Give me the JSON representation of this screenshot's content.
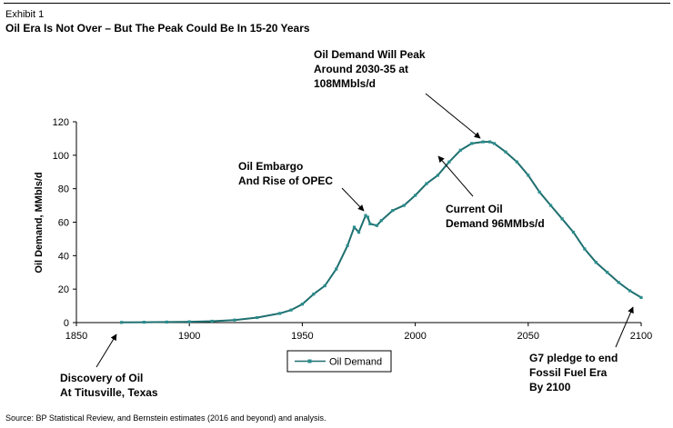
{
  "header": {
    "exhibit": "Exhibit 1",
    "title": "Oil Era Is Not Over – But The Peak Could Be In 15-20 Years"
  },
  "source": "Source: BP Statistical Review, and Bernstein estimates (2016 and beyond) and analysis.",
  "colors": {
    "series": "#1f6f6f",
    "marker": "#2a8c8c"
  },
  "chart_data": {
    "type": "line",
    "ylabel": "Oil Demand, MMbls/d",
    "xlabel": "",
    "xlim": [
      1850,
      2100
    ],
    "ylim": [
      0,
      120
    ],
    "xticks": [
      1850,
      1900,
      1950,
      2000,
      2050,
      2100
    ],
    "yticks": [
      0,
      20,
      40,
      60,
      80,
      100,
      120
    ],
    "grid": false,
    "legend": {
      "position": "bottom-center",
      "entries": [
        "Oil Demand"
      ]
    },
    "series": [
      {
        "name": "Oil Demand",
        "x": [
          1870,
          1880,
          1890,
          1900,
          1910,
          1920,
          1930,
          1940,
          1945,
          1950,
          1955,
          1960,
          1965,
          1970,
          1973,
          1975,
          1978,
          1979,
          1980,
          1983,
          1985,
          1990,
          1995,
          2000,
          2005,
          2010,
          2015,
          2020,
          2025,
          2030,
          2033,
          2035,
          2040,
          2045,
          2050,
          2055,
          2060,
          2065,
          2070,
          2075,
          2080,
          2085,
          2090,
          2095,
          2100
        ],
        "y": [
          0.1,
          0.2,
          0.3,
          0.5,
          0.8,
          1.5,
          3.0,
          5.5,
          7.5,
          11,
          17,
          22,
          32,
          46,
          57,
          54,
          64,
          63,
          59,
          58,
          61,
          67,
          70,
          76,
          83,
          88,
          96,
          103,
          107,
          108,
          108,
          107,
          102,
          96,
          88,
          78,
          70,
          62,
          54,
          44,
          36,
          30,
          24,
          19,
          15
        ]
      }
    ],
    "annotations": [
      {
        "lines": [
          "Oil Demand Will Peak",
          "Around 2030-35 at",
          "108MMbls/d"
        ],
        "x": 2031,
        "y": 108
      },
      {
        "lines": [
          "Oil Embargo",
          "And Rise of OPEC"
        ],
        "x": 1978,
        "y": 64
      },
      {
        "lines": [
          "Current Oil",
          "Demand 96MMbs/d"
        ],
        "x": 2015,
        "y": 96
      },
      {
        "lines": [
          "Discovery  of Oil",
          "At Titusville, Texas"
        ],
        "x": 1870,
        "y": 0
      },
      {
        "lines": [
          "G7 pledge to end",
          "Fossil Fuel Era",
          "By 2100"
        ],
        "x": 2100,
        "y": 15
      }
    ]
  }
}
